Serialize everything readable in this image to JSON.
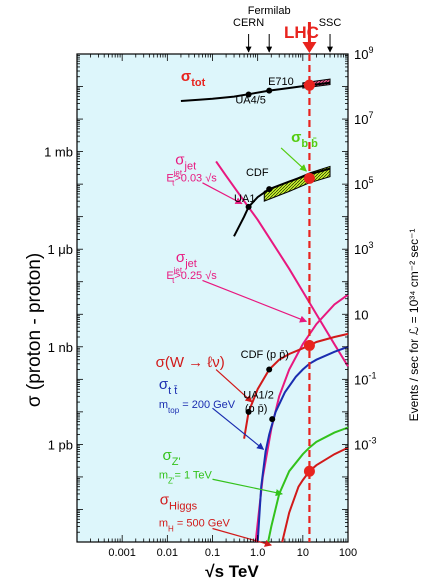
{
  "chart_data": {
    "type": "line",
    "title": "",
    "xlabel": "√s   TeV",
    "ylabel_left": "σ (proton - proton)",
    "ylabel_right": "Events / sec for ℒ = 10³⁴ cm⁻² sec⁻¹",
    "xscale": "log",
    "yscale": "log",
    "xlim": [
      0.0001,
      100
    ],
    "x_ticks": [
      {
        "value": 0.001,
        "label": "0.001"
      },
      {
        "value": 0.01,
        "label": "0.01"
      },
      {
        "value": 0.1,
        "label": "0.1"
      },
      {
        "value": 1,
        "label": "1.0"
      },
      {
        "value": 10,
        "label": "10"
      },
      {
        "value": 100,
        "label": "100"
      }
    ],
    "y_left_unit": "mb",
    "ylim_left": [
      1e-12,
      1000
    ],
    "y_left_ticks": [
      {
        "value": 1,
        "label": "1 mb"
      },
      {
        "value": 0.001,
        "label": "1 μb"
      },
      {
        "value": 1e-06,
        "label": "1 nb"
      },
      {
        "value": 1e-09,
        "label": "1 pb"
      }
    ],
    "y_right_ticks": [
      {
        "value": 1000,
        "label": "10",
        "exp": "9"
      },
      {
        "value": 10,
        "label": "10",
        "exp": "7"
      },
      {
        "value": 0.1,
        "label": "10",
        "exp": "5"
      },
      {
        "value": 0.001,
        "label": "10",
        "exp": "3"
      },
      {
        "value": 1e-05,
        "label": "10",
        "exp": ""
      },
      {
        "value": 1e-07,
        "label": "10",
        "exp": "-1"
      },
      {
        "value": 1e-09,
        "label": "10",
        "exp": "-3"
      }
    ],
    "top_markers": [
      {
        "label": "CERN",
        "x": 0.63
      },
      {
        "label": "Fermilab",
        "x": 1.8
      },
      {
        "label": "SSC",
        "x": 40
      }
    ],
    "lhc": {
      "label": "LHC",
      "x": 14,
      "color": "#e8231e"
    },
    "series": [
      {
        "color": "#000000",
        "x": [
          0.02,
          0.05,
          0.1,
          0.3,
          0.63,
          1.8,
          5,
          14,
          40
        ],
        "y": [
          36,
          39,
          42,
          49,
          58,
          75,
          90,
          110,
          130
        ]
      },
      {
        "color": "#000000",
        "x": [
          0.3,
          0.5,
          0.63,
          1,
          1.8,
          5,
          14,
          40
        ],
        "y": [
          0.0025,
          0.01,
          0.02,
          0.04,
          0.07,
          0.12,
          0.2,
          0.3
        ]
      },
      {
        "color": "#e8187f",
        "x": [
          0.12,
          0.2,
          0.5,
          1,
          2,
          5,
          10,
          20,
          50,
          100
        ],
        "y": [
          0.5,
          0.18,
          0.03,
          0.008,
          0.0018,
          0.00025,
          5e-05,
          1e-05,
          1.2e-06,
          2.5e-07
        ]
      },
      {
        "color": "#e8187f",
        "x": [
          0.9,
          1.3,
          2,
          3,
          5,
          10,
          20,
          50,
          100
        ],
        "y": [
          1e-12,
          1e-10,
          3e-09,
          3e-08,
          2e-07,
          1.2e-06,
          5e-06,
          2e-05,
          4e-05
        ]
      },
      {
        "color": "#d11a1a",
        "x": [
          0.5,
          0.63,
          1,
          1.8,
          3,
          5,
          10,
          14,
          20,
          50,
          100
        ],
        "y": [
          1.5e-09,
          1e-08,
          5e-08,
          2e-07,
          4e-07,
          6e-07,
          9e-07,
          1.1e-06,
          1.4e-06,
          2e-06,
          2.5e-06
        ]
      },
      {
        "color": "#1a2db0",
        "x": [
          1.0,
          1.2,
          1.5,
          1.8,
          2.5,
          4,
          7,
          10,
          14,
          20,
          50,
          100
        ],
        "y": [
          1e-12,
          5e-11,
          6e-10,
          2e-09,
          1e-08,
          4e-08,
          1.2e-07,
          2e-07,
          3e-07,
          4e-07,
          7e-07,
          1e-06
        ]
      },
      {
        "color": "#33c21c",
        "x": [
          1.7,
          2,
          3,
          5,
          10,
          14,
          20,
          50,
          100
        ],
        "y": [
          1e-12,
          3e-12,
          3e-11,
          1.5e-10,
          5e-10,
          8e-10,
          1.2e-09,
          2.3e-09,
          3.3e-09
        ]
      },
      {
        "color": "#d11a1a",
        "x": [
          3.5,
          5,
          8,
          10,
          14,
          20,
          50,
          100
        ],
        "y": [
          1e-12,
          8e-12,
          5e-11,
          8e-11,
          1.5e-10,
          2.3e-10,
          5e-10,
          8e-10
        ]
      }
    ],
    "bands": [
      {
        "fill": "#e8578a",
        "upper_x": [
          10,
          40
        ],
        "upper_y": [
          130,
          170
        ],
        "lower_x": [
          10,
          40
        ],
        "lower_y": [
          90,
          115
        ]
      },
      {
        "fill": "#c3f02a",
        "upper_x": [
          1.4,
          5,
          14,
          40
        ],
        "upper_y": [
          0.06,
          0.12,
          0.22,
          0.35
        ],
        "lower_x": [
          1.4,
          5,
          14,
          40
        ],
        "lower_y": [
          0.03,
          0.06,
          0.11,
          0.17
        ]
      }
    ],
    "data_points": [
      {
        "x": 0.63,
        "y": 57,
        "color": "#000000"
      },
      {
        "x": 1.8,
        "y": 75,
        "color": "#000000"
      },
      {
        "x": 1.8,
        "y": 0.07,
        "color": "#000000"
      },
      {
        "x": 0.63,
        "y": 0.02,
        "color": "#000000"
      },
      {
        "x": 1.8,
        "y": 2e-07,
        "color": "#000000"
      },
      {
        "x": 0.63,
        "y": 1e-08,
        "color": "#000000"
      },
      {
        "x": 2.1,
        "y": 6e-09,
        "color": "#000000"
      },
      {
        "x": 14,
        "y": 110,
        "color": "#e8231e"
      },
      {
        "x": 14,
        "y": 0.15,
        "color": "#e8231e"
      },
      {
        "x": 14,
        "y": 1.1e-06,
        "color": "#e8231e"
      },
      {
        "x": 14,
        "y": 1.5e-10,
        "color": "#e8231e"
      }
    ],
    "annotations": [
      {
        "main": "σ",
        "sub": "tot",
        "color": "#e8231e",
        "x": 0.02,
        "y": 150
      },
      {
        "main": "E710",
        "color": "#000000",
        "x": 1.7,
        "y": 110
      },
      {
        "main": "UA4/5",
        "color": "#000000",
        "x": 0.32,
        "y": 30
      },
      {
        "main": "σ",
        "sub": "b b̄",
        "color": "#55cc11",
        "x": 5.5,
        "y": 2
      },
      {
        "main": "CDF",
        "color": "#000000",
        "x": 0.55,
        "y": 0.18
      },
      {
        "main": "UA1",
        "color": "#000000",
        "x": 0.3,
        "y": 0.028
      },
      {
        "main": "σ",
        "sub": "jet",
        "color": "#e8187f",
        "x": 0.015,
        "y": 0.4
      },
      {
        "main": "E",
        "sub": "t",
        "sup": "jet",
        "extra": ">0.03 √s",
        "color": "#e8187f",
        "x": 0.0095,
        "y": 0.12
      },
      {
        "main": "σ",
        "sub": "jet",
        "color": "#e8187f",
        "x": 0.0155,
        "y": 0.0004
      },
      {
        "main": "E",
        "sub": "t",
        "sup": "jet",
        "extra": ">0.25 √s",
        "color": "#e8187f",
        "x": 0.0095,
        "y": 0.00012
      },
      {
        "main": "σ(W → ℓν)",
        "color": "#d11a1a",
        "x": 0.0055,
        "y": 2.4e-07
      },
      {
        "main": "CDF (p p̄)",
        "color": "#000000",
        "x": 0.42,
        "y": 4.5e-07
      },
      {
        "main": "UA1/2",
        "color": "#000000",
        "x": 0.48,
        "y": 2.6e-08
      },
      {
        "main": "(p p̄)",
        "color": "#000000",
        "x": 0.52,
        "y": 1e-08
      },
      {
        "main": "σ",
        "sub": "t t̄",
        "color": "#1a2db0",
        "x": 0.0065,
        "y": 5e-08
      },
      {
        "main": "m",
        "sub": "top",
        "extra": " = 200 GeV",
        "color": "#1a2db0",
        "x": 0.0065,
        "y": 1.3e-08
      },
      {
        "main": "σ",
        "sub": "Z'",
        "color": "#33c21c",
        "x": 0.0078,
        "y": 3.3e-10
      },
      {
        "main": "m",
        "sub": "Z'",
        "extra": "= 1 TeV",
        "color": "#33c21c",
        "x": 0.0065,
        "y": 9e-11
      },
      {
        "main": "σ",
        "sub": "Higgs",
        "color": "#d11a1a",
        "x": 0.0068,
        "y": 1.4e-11
      },
      {
        "main": "m",
        "sub": "H",
        "extra": " = 500 GeV",
        "color": "#d11a1a",
        "x": 0.0065,
        "y": 3e-12
      }
    ],
    "arrows": [
      {
        "color": "#55cc11",
        "from": [
          3.3,
          1.3
        ],
        "to": [
          12,
          0.25
        ]
      },
      {
        "color": "#e8187f",
        "from": [
          0.06,
          0.11
        ],
        "to": [
          0.45,
          0.025
        ]
      },
      {
        "color": "#e8187f",
        "from": [
          0.06,
          0.00011
        ],
        "to": [
          12,
          6e-06
        ]
      },
      {
        "color": "#d11a1a",
        "from": [
          0.12,
          2e-07
        ],
        "to": [
          0.75,
          2e-08
        ]
      },
      {
        "color": "#1a2db0",
        "from": [
          0.1,
          1.3e-08
        ],
        "to": [
          1.35,
          7e-10
        ]
      },
      {
        "color": "#33c21c",
        "from": [
          0.1,
          8.5e-11
        ],
        "to": [
          3.5,
          3e-11
        ]
      },
      {
        "color": "#d11a1a",
        "from": [
          0.1,
          2.6e-12
        ],
        "to": [
          2.0,
          8e-13
        ]
      }
    ],
    "grid": false,
    "legend": "none"
  }
}
